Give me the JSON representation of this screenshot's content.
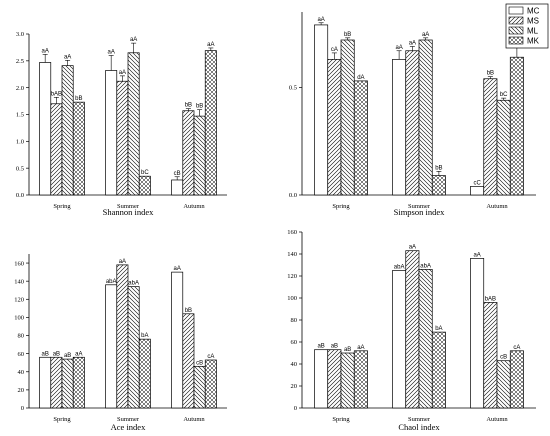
{
  "legend": [
    {
      "name": "MC",
      "pattern": "blank"
    },
    {
      "name": "MS",
      "pattern": "diag-fwd"
    },
    {
      "name": "ML",
      "pattern": "diag-back"
    },
    {
      "name": "MK",
      "pattern": "cross"
    }
  ],
  "chart_data": [
    {
      "type": "bar",
      "title": "Shannon index",
      "categories": [
        "Spring",
        "Summer",
        "Autumn"
      ],
      "ylim": [
        0,
        3.0
      ],
      "yticks": [
        "0.0",
        "0.5",
        "1.0",
        "1.5",
        "2.0",
        "2.5",
        "3.0"
      ],
      "series": [
        {
          "name": "MC",
          "values": [
            2.47,
            2.32,
            0.28
          ],
          "errors": [
            0.15,
            0.28,
            0.06
          ],
          "labels": [
            "aA",
            "aA",
            "cB"
          ]
        },
        {
          "name": "MS",
          "values": [
            1.7,
            2.12,
            1.57
          ],
          "errors": [
            0.12,
            0.1,
            0.04
          ],
          "labels": [
            "bAB",
            "aA",
            "bB"
          ]
        },
        {
          "name": "ML",
          "values": [
            2.41,
            2.65,
            1.47
          ],
          "errors": [
            0.1,
            0.18,
            0.12
          ],
          "labels": [
            "aA",
            "aA",
            "bB"
          ]
        },
        {
          "name": "MK",
          "values": [
            1.73,
            0.35,
            2.69
          ],
          "errors": [
            0.0,
            0.0,
            0.05
          ],
          "labels": [
            "bB",
            "bC",
            "aA"
          ]
        }
      ]
    },
    {
      "type": "bar",
      "title": "Simpson index",
      "categories": [
        "Spring",
        "Summer",
        "Autumn"
      ],
      "ylim": [
        0,
        0.85
      ],
      "yticks": [
        "0.0",
        "0.5"
      ],
      "ytick_values": [
        0,
        0.5
      ],
      "series": [
        {
          "name": "MC",
          "values": [
            0.79,
            0.63,
            0.04
          ],
          "errors": [
            0.01,
            0.04,
            0.0
          ],
          "labels": [
            "aA",
            "aA",
            "cC"
          ]
        },
        {
          "name": "MS",
          "values": [
            0.63,
            0.67,
            0.54
          ],
          "errors": [
            0.03,
            0.02,
            0.01
          ],
          "labels": [
            "cA",
            "aA",
            "bB"
          ]
        },
        {
          "name": "ML",
          "values": [
            0.72,
            0.72,
            0.44
          ],
          "errors": [
            0.01,
            0.01,
            0.01
          ],
          "labels": [
            "bB",
            "aA",
            "bC"
          ]
        },
        {
          "name": "MK",
          "values": [
            0.53,
            0.09,
            0.64
          ],
          "errors": [
            0.0,
            0.02,
            0.07
          ],
          "labels": [
            "dA",
            "bB",
            "aA"
          ]
        }
      ]
    },
    {
      "type": "bar",
      "title": "Ace index",
      "categories": [
        "Spring",
        "Summer",
        "Autumn"
      ],
      "ylim": [
        0,
        170
      ],
      "yticks": [
        "0",
        "20",
        "40",
        "60",
        "80",
        "100",
        "120",
        "140",
        "160"
      ],
      "series": [
        {
          "name": "MC",
          "values": [
            56,
            136,
            150
          ],
          "labels": [
            "aB",
            "abA",
            "aA"
          ]
        },
        {
          "name": "MS",
          "values": [
            56,
            158,
            104
          ],
          "labels": [
            "aB",
            "aA",
            "bB"
          ]
        },
        {
          "name": "ML",
          "values": [
            54,
            134,
            46
          ],
          "labels": [
            "aB",
            "abA",
            "cB"
          ]
        },
        {
          "name": "MK",
          "values": [
            56,
            76,
            53
          ],
          "labels": [
            "aA",
            "bA",
            "cA"
          ]
        }
      ]
    },
    {
      "type": "bar",
      "title": "Chaol index",
      "categories": [
        "Spring",
        "Summer",
        "Autumn"
      ],
      "ylim": [
        0,
        160
      ],
      "yticks": [
        "0",
        "20",
        "40",
        "60",
        "80",
        "100",
        "120",
        "140",
        "160"
      ],
      "series": [
        {
          "name": "MC",
          "values": [
            53,
            125,
            136
          ],
          "labels": [
            "aB",
            "abA",
            "aA"
          ]
        },
        {
          "name": "MS",
          "values": [
            53,
            143,
            96
          ],
          "labels": [
            "aB",
            "aA",
            "bAB"
          ]
        },
        {
          "name": "ML",
          "values": [
            50,
            126,
            43
          ],
          "labels": [
            "aB",
            "abA",
            "cB"
          ]
        },
        {
          "name": "MK",
          "values": [
            52,
            69,
            52
          ],
          "labels": [
            "aA",
            "bA",
            "cA"
          ]
        }
      ]
    }
  ]
}
